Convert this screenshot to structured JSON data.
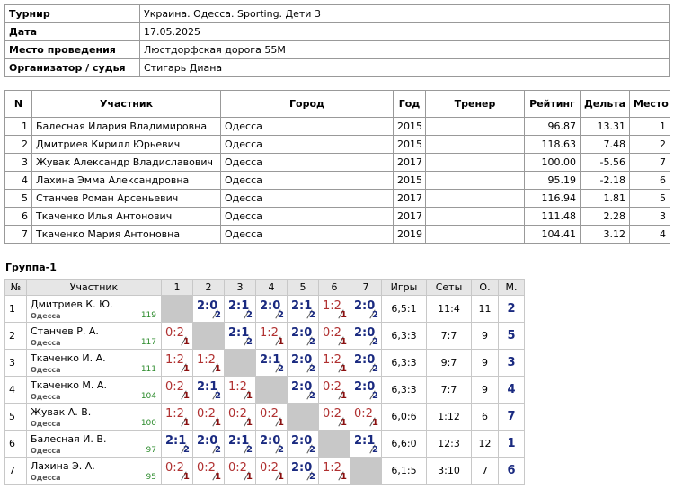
{
  "info": [
    {
      "label": "Турнир",
      "value": "Украина. Одесса. Sporting. Дети 3"
    },
    {
      "label": "Дата",
      "value": "17.05.2025"
    },
    {
      "label": "Место проведения",
      "value": "Люстдорфская дорога 55М"
    },
    {
      "label": "Организатор / судья",
      "value": "Стигарь Диана"
    }
  ],
  "participants": {
    "headers": [
      "N",
      "Участник",
      "Город",
      "Год",
      "Тренер",
      "Рейтинг",
      "Дельта",
      "Место"
    ],
    "rows": [
      {
        "n": "1",
        "name": "Балесная Илария Владимировна",
        "city": "Одесса",
        "year": "2015",
        "rating": "96.87",
        "delta": "13.31",
        "place": "1"
      },
      {
        "n": "2",
        "name": "Дмитриев Кирилл Юрьевич",
        "city": "Одесса",
        "year": "2015",
        "rating": "118.63",
        "delta": "7.48",
        "place": "2"
      },
      {
        "n": "3",
        "name": "Жувак Александр Владиславович",
        "city": "Одесса",
        "year": "2017",
        "rating": "100.00",
        "delta": "-5.56",
        "place": "7"
      },
      {
        "n": "4",
        "name": "Лахина Эмма Александровна",
        "city": "Одесса",
        "year": "2015",
        "rating": "95.19",
        "delta": "-2.18",
        "place": "6"
      },
      {
        "n": "5",
        "name": "Станчев Роман Арсеньевич",
        "city": "Одесса",
        "year": "2017",
        "rating": "116.94",
        "delta": "1.81",
        "place": "5"
      },
      {
        "n": "6",
        "name": "Ткаченко Илья Антонович",
        "city": "Одесса",
        "year": "2017",
        "rating": "111.48",
        "delta": "2.28",
        "place": "3"
      },
      {
        "n": "7",
        "name": "Ткаченко Мария Антоновна",
        "city": "Одесса",
        "year": "2019",
        "rating": "104.41",
        "delta": "3.12",
        "place": "4"
      }
    ]
  },
  "group": {
    "title": "Группа-1",
    "headers": [
      "№",
      "Участник",
      "1",
      "2",
      "3",
      "4",
      "5",
      "6",
      "7",
      "Игры",
      "Сеты",
      "О.",
      "М."
    ],
    "rows": [
      {
        "n": "1",
        "name": "Дмитриев К. Ю.",
        "city": "Одесса",
        "rating": "119",
        "results": [
          null,
          {
            "score": "2:0",
            "points": "2"
          },
          {
            "score": "2:1",
            "points": "2"
          },
          {
            "score": "2:0",
            "points": "2"
          },
          {
            "score": "2:1",
            "points": "2"
          },
          {
            "score": "1:2",
            "points": "1"
          },
          {
            "score": "2:0",
            "points": "2"
          }
        ],
        "games": "6,5:1",
        "sets": "11:4",
        "points": "11",
        "place": "2"
      },
      {
        "n": "2",
        "name": "Станчев Р. А.",
        "city": "Одесса",
        "rating": "117",
        "results": [
          {
            "score": "0:2",
            "points": "1"
          },
          null,
          {
            "score": "2:1",
            "points": "2"
          },
          {
            "score": "1:2",
            "points": "1"
          },
          {
            "score": "2:0",
            "points": "2"
          },
          {
            "score": "0:2",
            "points": "1"
          },
          {
            "score": "2:0",
            "points": "2"
          }
        ],
        "games": "6,3:3",
        "sets": "7:7",
        "points": "9",
        "place": "5"
      },
      {
        "n": "3",
        "name": "Ткаченко И. А.",
        "city": "Одесса",
        "rating": "111",
        "results": [
          {
            "score": "1:2",
            "points": "1"
          },
          {
            "score": "1:2",
            "points": "1"
          },
          null,
          {
            "score": "2:1",
            "points": "2"
          },
          {
            "score": "2:0",
            "points": "2"
          },
          {
            "score": "1:2",
            "points": "1"
          },
          {
            "score": "2:0",
            "points": "2"
          }
        ],
        "games": "6,3:3",
        "sets": "9:7",
        "points": "9",
        "place": "3"
      },
      {
        "n": "4",
        "name": "Ткаченко М. А.",
        "city": "Одесса",
        "rating": "104",
        "results": [
          {
            "score": "0:2",
            "points": "1"
          },
          {
            "score": "2:1",
            "points": "2"
          },
          {
            "score": "1:2",
            "points": "1"
          },
          null,
          {
            "score": "2:0",
            "points": "2"
          },
          {
            "score": "0:2",
            "points": "1"
          },
          {
            "score": "2:0",
            "points": "2"
          }
        ],
        "games": "6,3:3",
        "sets": "7:7",
        "points": "9",
        "place": "4"
      },
      {
        "n": "5",
        "name": "Жувак А. В.",
        "city": "Одесса",
        "rating": "100",
        "results": [
          {
            "score": "1:2",
            "points": "1"
          },
          {
            "score": "0:2",
            "points": "1"
          },
          {
            "score": "0:2",
            "points": "1"
          },
          {
            "score": "0:2",
            "points": "1"
          },
          null,
          {
            "score": "0:2",
            "points": "1"
          },
          {
            "score": "0:2",
            "points": "1"
          }
        ],
        "games": "6,0:6",
        "sets": "1:12",
        "points": "6",
        "place": "7"
      },
      {
        "n": "6",
        "name": "Балесная И. В.",
        "city": "Одесса",
        "rating": "97",
        "results": [
          {
            "score": "2:1",
            "points": "2"
          },
          {
            "score": "2:0",
            "points": "2"
          },
          {
            "score": "2:1",
            "points": "2"
          },
          {
            "score": "2:0",
            "points": "2"
          },
          {
            "score": "2:0",
            "points": "2"
          },
          null,
          {
            "score": "2:1",
            "points": "2"
          }
        ],
        "games": "6,6:0",
        "sets": "12:3",
        "points": "12",
        "place": "1"
      },
      {
        "n": "7",
        "name": "Лахина Э. А.",
        "city": "Одесса",
        "rating": "95",
        "results": [
          {
            "score": "0:2",
            "points": "1"
          },
          {
            "score": "0:2",
            "points": "1"
          },
          {
            "score": "0:2",
            "points": "1"
          },
          {
            "score": "0:2",
            "points": "1"
          },
          {
            "score": "2:0",
            "points": "2"
          },
          {
            "score": "1:2",
            "points": "1"
          },
          null
        ],
        "games": "6,1:5",
        "sets": "3:10",
        "points": "7",
        "place": "6"
      }
    ]
  }
}
